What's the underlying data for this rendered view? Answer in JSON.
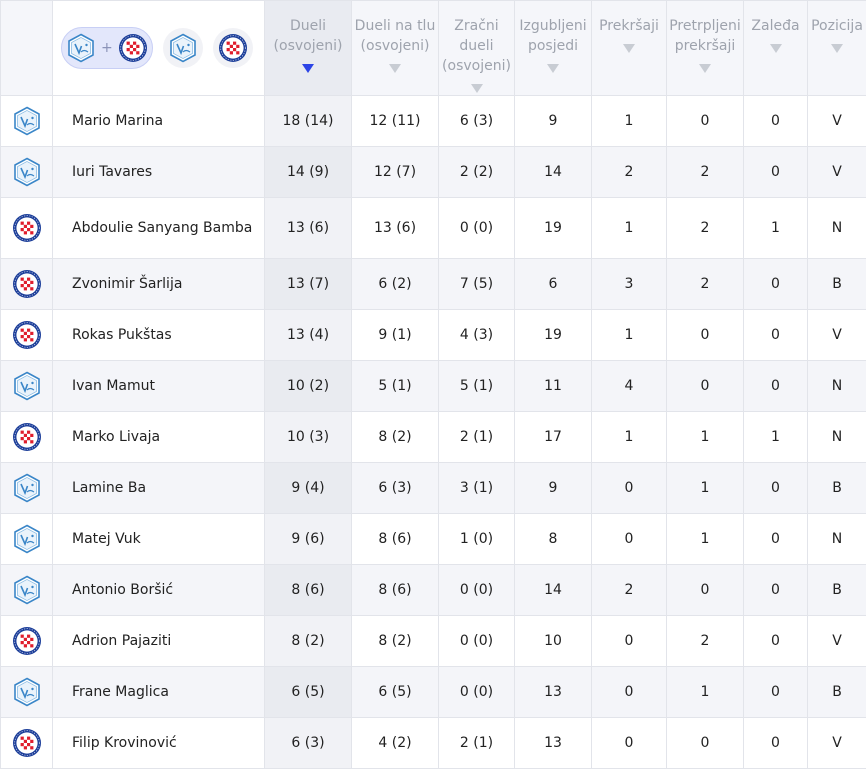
{
  "headers": {
    "duels": "Dueli (osvojeni)",
    "ground_duels": "Dueli na tlu (osvojeni)",
    "aerial_duels": "Zračni dueli (osvojeni)",
    "possession_lost": "Izgubljeni posjedi",
    "fouls": "Prekršaji",
    "was_fouled": "Pretrpljeni prekršaji",
    "offsides": "Zaleđa",
    "position": "Pozicija"
  },
  "filter": {
    "plus": "+",
    "active": "both-teams",
    "team_a_icon": "vukovar-crest-icon",
    "team_b_icon": "hajduk-split-crest-icon"
  },
  "colors": {
    "accent": "#2c44e6",
    "header_bg": "#f5f6fa",
    "row_alt": "#f4f5f9",
    "team_a": "#3a86c8",
    "team_b": "#1d3f9a",
    "team_b_red": "#e01e2d"
  },
  "rows": [
    {
      "team": "a",
      "name": "Mario Marina",
      "duels": "18 (14)",
      "ground": "12 (11)",
      "aerial": "6 (3)",
      "lost": "9",
      "fouls": "1",
      "fouled": "0",
      "offsides": "0",
      "position": "V"
    },
    {
      "team": "a",
      "name": "Iuri Tavares",
      "duels": "14 (9)",
      "ground": "12 (7)",
      "aerial": "2 (2)",
      "lost": "14",
      "fouls": "2",
      "fouled": "2",
      "offsides": "0",
      "position": "V"
    },
    {
      "team": "b",
      "name": "Abdoulie Sanyang Bamba",
      "duels": "13 (6)",
      "ground": "13 (6)",
      "aerial": "0 (0)",
      "lost": "19",
      "fouls": "1",
      "fouled": "2",
      "offsides": "1",
      "position": "N"
    },
    {
      "team": "b",
      "name": "Zvonimir Šarlija",
      "duels": "13 (7)",
      "ground": "6 (2)",
      "aerial": "7 (5)",
      "lost": "6",
      "fouls": "3",
      "fouled": "2",
      "offsides": "0",
      "position": "B"
    },
    {
      "team": "b",
      "name": "Rokas Pukštas",
      "duels": "13 (4)",
      "ground": "9 (1)",
      "aerial": "4 (3)",
      "lost": "19",
      "fouls": "1",
      "fouled": "0",
      "offsides": "0",
      "position": "V"
    },
    {
      "team": "a",
      "name": "Ivan Mamut",
      "duels": "10 (2)",
      "ground": "5 (1)",
      "aerial": "5 (1)",
      "lost": "11",
      "fouls": "4",
      "fouled": "0",
      "offsides": "0",
      "position": "N"
    },
    {
      "team": "b",
      "name": "Marko Livaja",
      "duels": "10 (3)",
      "ground": "8 (2)",
      "aerial": "2 (1)",
      "lost": "17",
      "fouls": "1",
      "fouled": "1",
      "offsides": "1",
      "position": "N"
    },
    {
      "team": "a",
      "name": "Lamine Ba",
      "duels": "9 (4)",
      "ground": "6 (3)",
      "aerial": "3 (1)",
      "lost": "9",
      "fouls": "0",
      "fouled": "1",
      "offsides": "0",
      "position": "B"
    },
    {
      "team": "a",
      "name": "Matej Vuk",
      "duels": "9 (6)",
      "ground": "8 (6)",
      "aerial": "1 (0)",
      "lost": "8",
      "fouls": "0",
      "fouled": "1",
      "offsides": "0",
      "position": "N"
    },
    {
      "team": "a",
      "name": "Antonio Boršić",
      "duels": "8 (6)",
      "ground": "8 (6)",
      "aerial": "0 (0)",
      "lost": "14",
      "fouls": "2",
      "fouled": "0",
      "offsides": "0",
      "position": "B"
    },
    {
      "team": "b",
      "name": "Adrion Pajaziti",
      "duels": "8 (2)",
      "ground": "8 (2)",
      "aerial": "0 (0)",
      "lost": "10",
      "fouls": "0",
      "fouled": "2",
      "offsides": "0",
      "position": "V"
    },
    {
      "team": "a",
      "name": "Frane Maglica",
      "duels": "6 (5)",
      "ground": "6 (5)",
      "aerial": "0 (0)",
      "lost": "13",
      "fouls": "0",
      "fouled": "1",
      "offsides": "0",
      "position": "B"
    },
    {
      "team": "b",
      "name": "Filip Krovinović",
      "duels": "6 (3)",
      "ground": "4 (2)",
      "aerial": "2 (1)",
      "lost": "13",
      "fouls": "0",
      "fouled": "0",
      "offsides": "0",
      "position": "V"
    }
  ]
}
